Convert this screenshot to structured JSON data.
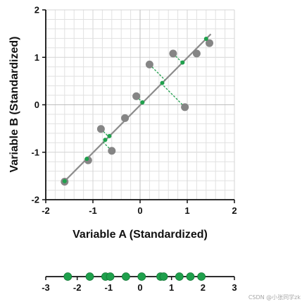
{
  "chart_data": [
    {
      "type": "scatter",
      "xlabel": "Variable A (Standardized)",
      "ylabel": "Variable B (Standardized)",
      "xlim": [
        -2,
        2
      ],
      "ylim": [
        -2,
        2
      ],
      "x_ticks": [
        "-2",
        "-1",
        "0",
        "1",
        "2"
      ],
      "y_ticks": [
        "-2",
        "-1",
        "0",
        "1",
        "2"
      ],
      "grid": true,
      "gray_points": [
        {
          "x": -1.6,
          "y": -1.62
        },
        {
          "x": -1.1,
          "y": -1.17
        },
        {
          "x": -0.83,
          "y": -0.51
        },
        {
          "x": -0.6,
          "y": -0.97
        },
        {
          "x": -0.32,
          "y": -0.28
        },
        {
          "x": -0.08,
          "y": 0.18
        },
        {
          "x": 0.2,
          "y": 0.85
        },
        {
          "x": 0.7,
          "y": 1.08
        },
        {
          "x": 0.95,
          "y": -0.05
        },
        {
          "x": 1.2,
          "y": 1.08
        },
        {
          "x": 1.47,
          "y": 1.3
        }
      ],
      "projected_points": [
        {
          "x": -1.6,
          "y": -1.61
        },
        {
          "x": -1.13,
          "y": -1.14
        },
        {
          "x": -0.74,
          "y": -0.74
        },
        {
          "x": -0.65,
          "y": -0.66
        },
        {
          "x": 0.05,
          "y": 0.05
        },
        {
          "x": 0.47,
          "y": 0.46
        },
        {
          "x": 0.9,
          "y": 0.89
        },
        {
          "x": 1.4,
          "y": 1.39
        }
      ],
      "regression_line": {
        "x": [
          -1.62,
          1.5
        ],
        "y": [
          -1.63,
          1.49
        ]
      },
      "colors": {
        "gray_point": "#858585",
        "green_point": "#1fa04c",
        "line": "#8c8c8c",
        "projection": "#1fa04c",
        "grid": "#e1e1e1"
      }
    },
    {
      "type": "scatter",
      "xlim": [
        -3,
        3
      ],
      "x_ticks": [
        "-3",
        "-2",
        "-1",
        "0",
        "1",
        "2",
        "3"
      ],
      "values": [
        -2.3,
        -1.6,
        -1.1,
        -0.95,
        -0.45,
        0.05,
        0.65,
        0.75,
        1.25,
        1.6,
        1.95
      ],
      "colors": {
        "point": "#1fa04c",
        "axis": "#111111"
      }
    }
  ],
  "watermark": "CSDN @小张同学zk"
}
